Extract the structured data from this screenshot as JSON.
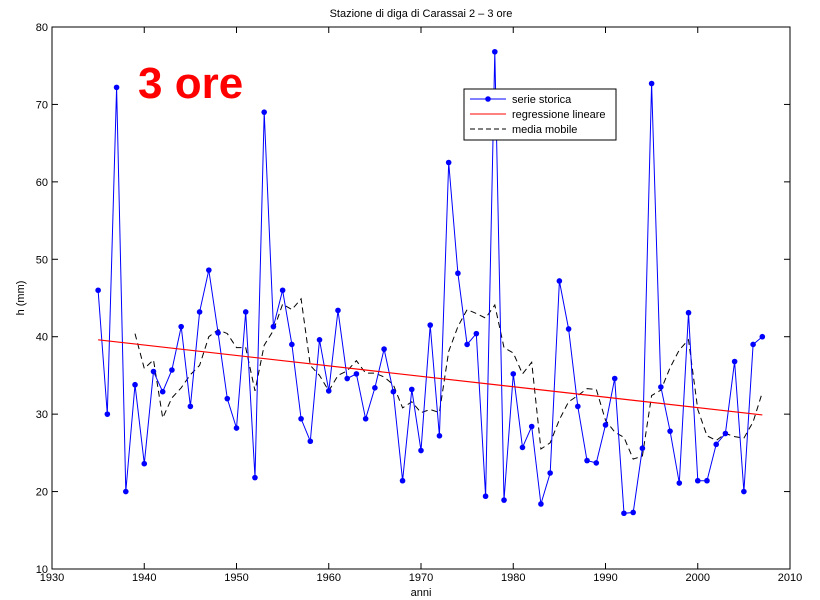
{
  "chart_data": {
    "type": "line",
    "title": "Stazione di diga di Carassai 2 – 3 ore",
    "xlabel": "anni",
    "ylabel": "h (mm)",
    "xlim": [
      1930,
      2010
    ],
    "ylim": [
      10,
      80
    ],
    "x_ticks": [
      1930,
      1940,
      1950,
      1960,
      1970,
      1980,
      1990,
      2000,
      2010
    ],
    "y_ticks": [
      10,
      20,
      30,
      40,
      50,
      60,
      70,
      80
    ],
    "grid": false,
    "legend_position": "top-right",
    "annotation": {
      "text": "3 ore",
      "color": "#ff0000"
    },
    "series": [
      {
        "name": "serie storica",
        "color": "#0000ff",
        "style": "solid-with-markers",
        "x": [
          1935,
          1936,
          1937,
          1938,
          1939,
          1940,
          1941,
          1942,
          1943,
          1944,
          1945,
          1946,
          1947,
          1948,
          1949,
          1950,
          1951,
          1952,
          1953,
          1954,
          1955,
          1956,
          1957,
          1958,
          1959,
          1960,
          1961,
          1962,
          1963,
          1964,
          1965,
          1966,
          1967,
          1968,
          1969,
          1970,
          1971,
          1972,
          1973,
          1974,
          1975,
          1976,
          1977,
          1978,
          1979,
          1980,
          1981,
          1982,
          1983,
          1984,
          1985,
          1986,
          1987,
          1988,
          1989,
          1990,
          1991,
          1992,
          1993,
          1994,
          1995,
          1996,
          1997,
          1998,
          1999,
          2000,
          2001,
          2002,
          2003,
          2004,
          2005,
          2006,
          2007
        ],
        "values": [
          46.0,
          30.0,
          72.2,
          20.0,
          33.8,
          23.6,
          35.5,
          32.9,
          35.7,
          41.3,
          31.0,
          43.2,
          48.6,
          40.5,
          32.0,
          28.2,
          43.2,
          21.8,
          69.0,
          41.3,
          46.0,
          39.0,
          29.4,
          26.5,
          39.6,
          33.0,
          43.4,
          34.6,
          35.2,
          29.4,
          33.4,
          38.4,
          32.9,
          21.4,
          33.2,
          25.3,
          41.5,
          27.2,
          62.5,
          48.2,
          39.0,
          40.4,
          19.4,
          76.8,
          18.9,
          35.2,
          25.7,
          28.4,
          18.4,
          22.4,
          47.2,
          41.0,
          31.0,
          24.0,
          23.7,
          28.6,
          34.6,
          17.2,
          17.3,
          25.6,
          72.7,
          33.5,
          27.8,
          21.1,
          43.1,
          21.4,
          21.4,
          26.1,
          27.5,
          36.8,
          20.0,
          39.0,
          40.0
        ]
      },
      {
        "name": "regressione lineare",
        "color": "#ff0000",
        "style": "solid",
        "x": [
          1935,
          2007
        ],
        "values": [
          39.6,
          29.9
        ]
      },
      {
        "name": "media mobile",
        "color": "#000000",
        "style": "dashed",
        "x": [
          1939,
          1940,
          1941,
          1942,
          1943,
          1944,
          1945,
          1946,
          1947,
          1948,
          1949,
          1950,
          1951,
          1952,
          1953,
          1954,
          1955,
          1956,
          1957,
          1958,
          1959,
          1960,
          1961,
          1962,
          1963,
          1964,
          1965,
          1966,
          1967,
          1968,
          1969,
          1970,
          1971,
          1972,
          1973,
          1974,
          1975,
          1976,
          1977,
          1978,
          1979,
          1980,
          1981,
          1982,
          1983,
          1984,
          1985,
          1986,
          1987,
          1988,
          1989,
          1990,
          1991,
          1992,
          1993,
          1994,
          1995,
          1996,
          1997,
          1998,
          1999,
          2000,
          2001,
          2002,
          2003,
          2004,
          2005,
          2006,
          2007
        ],
        "values": [
          40.4,
          35.9,
          37.0,
          29.5,
          32.1,
          33.4,
          35.1,
          36.3,
          40.0,
          40.9,
          40.4,
          38.6,
          38.6,
          33.0,
          38.9,
          40.8,
          44.2,
          43.5,
          44.9,
          36.3,
          35.0,
          33.0,
          35.0,
          35.6,
          36.9,
          35.3,
          35.3,
          34.8,
          33.8,
          30.8,
          31.6,
          30.2,
          30.6,
          30.2,
          38.1,
          41.3,
          43.5,
          43.0,
          42.4,
          44.1,
          38.6,
          37.9,
          35.2,
          36.7,
          25.5,
          26.3,
          29.3,
          31.6,
          32.4,
          33.3,
          33.2,
          29.2,
          27.7,
          27.0,
          24.2,
          24.6,
          32.4,
          33.1,
          36.0,
          38.3,
          39.6,
          30.6,
          27.2,
          26.6,
          27.5,
          27.1,
          26.9,
          29.0,
          32.8
        ]
      }
    ]
  }
}
